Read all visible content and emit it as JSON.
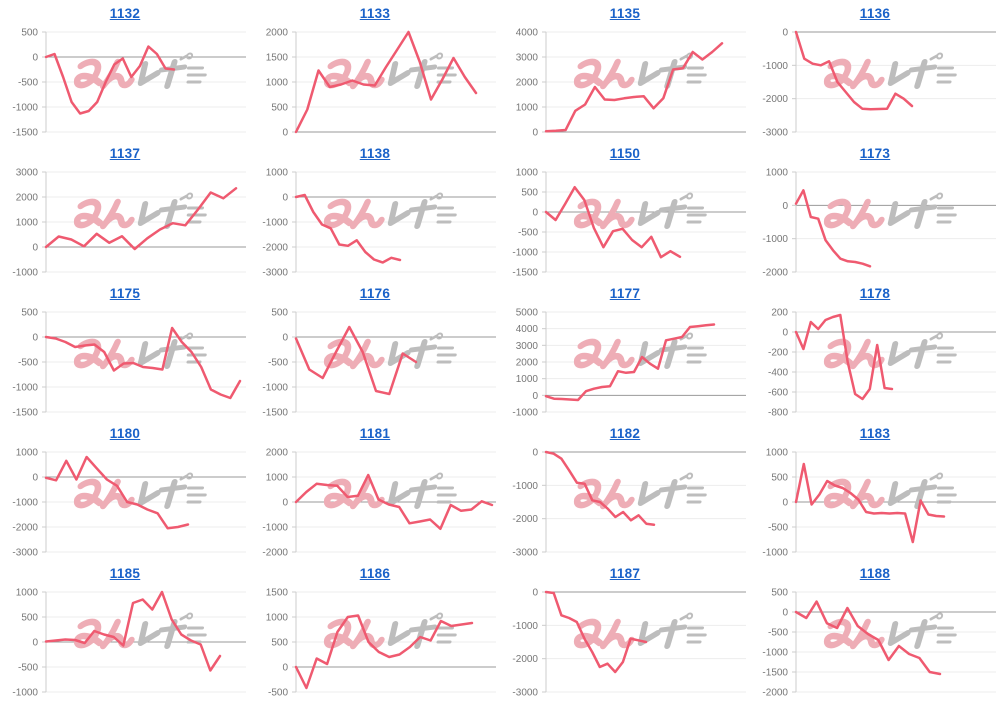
{
  "page": {
    "background": "#ffffff"
  },
  "style": {
    "line_color": "#ef5a70",
    "grid_color": "#ededed",
    "zero_line_color": "#999999",
    "axis_color": "#cccccc",
    "tick_label_color": "#777777",
    "title_color": "#1a62c9"
  },
  "watermark": {
    "name": "minrepo-logo",
    "pink_color": "#eeadb6",
    "gray_color": "#bdbdbd"
  },
  "chart_data": [
    {
      "type": "line",
      "title": "1132",
      "ticks": [
        500,
        0,
        -500,
        -1000,
        -1500
      ],
      "ylim": [
        -1500,
        500
      ],
      "span": 0.64,
      "values": [
        0,
        60,
        -400,
        -900,
        -1130,
        -1080,
        -900,
        -500,
        -150,
        -30,
        -400,
        -180,
        210,
        60,
        -230,
        -250
      ]
    },
    {
      "type": "line",
      "title": "1133",
      "ticks": [
        2000,
        1500,
        1000,
        500,
        0
      ],
      "ylim": [
        0,
        2000
      ],
      "span": 0.9,
      "values": [
        0,
        450,
        1230,
        900,
        950,
        1030,
        950,
        930,
        1300,
        1650,
        2000,
        1400,
        650,
        1050,
        1480,
        1100,
        780
      ]
    },
    {
      "type": "line",
      "title": "1135",
      "ticks": [
        4000,
        3000,
        2000,
        1000,
        0
      ],
      "ylim": [
        0,
        4000
      ],
      "span": 0.88,
      "values": [
        30,
        50,
        80,
        850,
        1100,
        1800,
        1300,
        1280,
        1350,
        1400,
        1430,
        950,
        1350,
        2500,
        2550,
        3200,
        2900,
        3200,
        3550
      ]
    },
    {
      "type": "line",
      "title": "1136",
      "ticks": [
        0,
        -1000,
        -2000,
        -3000
      ],
      "ylim": [
        -3000,
        0
      ],
      "span": 0.58,
      "values": [
        0,
        -800,
        -950,
        -1000,
        -880,
        -1500,
        -1800,
        -2100,
        -2300,
        -2320,
        -2310,
        -2300,
        -1850,
        -2000,
        -2220
      ]
    },
    {
      "type": "line",
      "title": "1137",
      "ticks": [
        3000,
        2000,
        1000,
        0,
        -1000
      ],
      "ylim": [
        -1000,
        3000
      ],
      "span": 0.95,
      "values": [
        0,
        420,
        300,
        30,
        530,
        170,
        430,
        -80,
        350,
        700,
        950,
        870,
        1500,
        2180,
        1950,
        2350
      ]
    },
    {
      "type": "line",
      "title": "1138",
      "ticks": [
        1000,
        0,
        -1000,
        -2000,
        -3000
      ],
      "ylim": [
        -3000,
        1000
      ],
      "span": 0.52,
      "values": [
        0,
        80,
        -600,
        -1100,
        -1250,
        -1900,
        -1950,
        -1730,
        -2200,
        -2500,
        -2620,
        -2430,
        -2520
      ]
    },
    {
      "type": "line",
      "title": "1150",
      "ticks": [
        1000,
        500,
        0,
        -500,
        -1000,
        -1500
      ],
      "ylim": [
        -1500,
        1000
      ],
      "span": 0.67,
      "values": [
        0,
        -200,
        200,
        620,
        300,
        -400,
        -880,
        -480,
        -420,
        -700,
        -880,
        -620,
        -1130,
        -980,
        -1120
      ]
    },
    {
      "type": "line",
      "title": "1173",
      "ticks": [
        1000,
        0,
        -1000,
        -2000
      ],
      "ylim": [
        -2000,
        1000
      ],
      "span": 0.37,
      "values": [
        50,
        450,
        -350,
        -400,
        -1050,
        -1350,
        -1600,
        -1680,
        -1700,
        -1750,
        -1830
      ]
    },
    {
      "type": "line",
      "title": "1175",
      "ticks": [
        500,
        0,
        -500,
        -1000,
        -1500
      ],
      "ylim": [
        -1500,
        500
      ],
      "span": 0.97,
      "values": [
        0,
        -30,
        -100,
        -200,
        -170,
        -150,
        -300,
        -670,
        -530,
        -520,
        -600,
        -620,
        -650,
        180,
        -100,
        -300,
        -600,
        -1050,
        -1150,
        -1220,
        -880
      ]
    },
    {
      "type": "line",
      "title": "1176",
      "ticks": [
        500,
        0,
        -500,
        -1000,
        -1500
      ],
      "ylim": [
        -1500,
        500
      ],
      "span": 0.6,
      "values": [
        -30,
        -650,
        -820,
        -300,
        200,
        -300,
        -1080,
        -1140,
        -330,
        -500
      ]
    },
    {
      "type": "line",
      "title": "1177",
      "ticks": [
        5000,
        4000,
        3000,
        2000,
        1000,
        0,
        -1000
      ],
      "ylim": [
        -1000,
        5000
      ],
      "span": 0.84,
      "values": [
        -50,
        -200,
        -220,
        -250,
        -280,
        250,
        400,
        500,
        550,
        1450,
        1350,
        1400,
        2300,
        1900,
        1600,
        3300,
        3400,
        3500,
        4100,
        4150,
        4200,
        4250
      ]
    },
    {
      "type": "line",
      "title": "1178",
      "ticks": [
        200,
        0,
        -200,
        -400,
        -600,
        -800
      ],
      "ylim": [
        -800,
        200
      ],
      "span": 0.48,
      "values": [
        0,
        -170,
        100,
        30,
        120,
        150,
        170,
        -300,
        -620,
        -670,
        -570,
        -130,
        -560,
        -570
      ]
    },
    {
      "type": "line",
      "title": "1180",
      "ticks": [
        1000,
        0,
        -1000,
        -2000,
        -3000
      ],
      "ylim": [
        -3000,
        1000
      ],
      "span": 0.71,
      "values": [
        -30,
        -130,
        650,
        -100,
        800,
        350,
        -100,
        -350,
        -1000,
        -1100,
        -1300,
        -1450,
        -2050,
        -2000,
        -1900
      ]
    },
    {
      "type": "line",
      "title": "1181",
      "ticks": [
        2000,
        1000,
        0,
        -1000,
        -2000
      ],
      "ylim": [
        -2000,
        2000
      ],
      "span": 0.98,
      "values": [
        0,
        400,
        730,
        680,
        650,
        200,
        250,
        1080,
        100,
        -100,
        -200,
        -850,
        -780,
        -700,
        -1070,
        -120,
        -350,
        -300,
        30,
        -120
      ]
    },
    {
      "type": "line",
      "title": "1182",
      "ticks": [
        0,
        -1000,
        -2000,
        -3000
      ],
      "ylim": [
        -3000,
        0
      ],
      "span": 0.54,
      "values": [
        0,
        -50,
        -200,
        -550,
        -920,
        -950,
        -1450,
        -1500,
        -1700,
        -1950,
        -1800,
        -2050,
        -1900,
        -2150,
        -2180
      ]
    },
    {
      "type": "line",
      "title": "1183",
      "ticks": [
        1000,
        500,
        0,
        -500,
        -1000
      ],
      "ylim": [
        -1000,
        1000
      ],
      "span": 0.74,
      "values": [
        0,
        760,
        -50,
        150,
        420,
        330,
        280,
        180,
        50,
        -200,
        -230,
        -220,
        -230,
        -220,
        -230,
        -800,
        30,
        -250,
        -280,
        -290
      ]
    },
    {
      "type": "line",
      "title": "1185",
      "ticks": [
        1000,
        500,
        0,
        -500,
        -1000
      ],
      "ylim": [
        -1000,
        1000
      ],
      "span": 0.87,
      "values": [
        10,
        30,
        50,
        40,
        -20,
        220,
        150,
        100,
        -70,
        780,
        850,
        650,
        1000,
        450,
        150,
        30,
        -50,
        -570,
        -280
      ]
    },
    {
      "type": "line",
      "title": "1186",
      "ticks": [
        1500,
        1000,
        500,
        0,
        -500
      ],
      "ylim": [
        -500,
        1500
      ],
      "span": 0.88,
      "values": [
        0,
        -420,
        170,
        60,
        700,
        1000,
        1030,
        500,
        300,
        200,
        250,
        400,
        600,
        530,
        920,
        820,
        850,
        880
      ]
    },
    {
      "type": "line",
      "title": "1187",
      "ticks": [
        0,
        -1000,
        -2000,
        -3000
      ],
      "ylim": [
        -3000,
        0
      ],
      "span": 0.5,
      "values": [
        0,
        -30,
        -700,
        -780,
        -900,
        -1400,
        -1800,
        -2250,
        -2150,
        -2400,
        -2100,
        -1400,
        -1450,
        -1500
      ]
    },
    {
      "type": "line",
      "title": "1188",
      "ticks": [
        500,
        0,
        -500,
        -1000,
        -1500,
        -2000
      ],
      "ylim": [
        -2000,
        500
      ],
      "span": 0.72,
      "values": [
        0,
        -150,
        260,
        -280,
        -400,
        100,
        -350,
        -550,
        -700,
        -1200,
        -850,
        -1050,
        -1150,
        -1500,
        -1550
      ]
    }
  ]
}
